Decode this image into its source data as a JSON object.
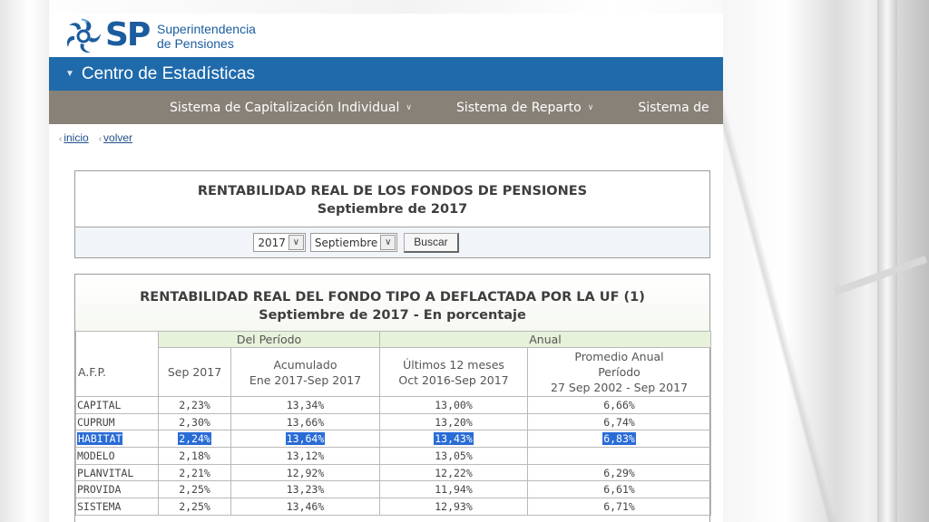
{
  "header": {
    "logo_abbrev": "SP",
    "logo_line1": "Superintendencia",
    "logo_line2": "de Pensiones",
    "section_title": "Centro de Estadísticas"
  },
  "nav": {
    "items": [
      {
        "label": "Sistema de Capitalización Individual",
        "icon": "chevron-down-icon"
      },
      {
        "label": "Sistema de Reparto",
        "icon": "chevron-down-icon"
      },
      {
        "label": "Sistema de",
        "icon": ""
      }
    ]
  },
  "breadcrumbs": {
    "home": "inicio",
    "back": "volver"
  },
  "filter_box": {
    "title": "RENTABILIDAD REAL DE LOS FONDOS DE PENSIONES",
    "subtitle": "Septiembre de 2017",
    "year_value": "2017",
    "month_value": "Septiembre",
    "search_label": "Buscar"
  },
  "results": {
    "title": "RENTABILIDAD REAL DEL FONDO TIPO A DEFLACTADA POR LA UF (1)",
    "subtitle": "Septiembre de 2017 - En porcentaje",
    "group_headers": {
      "period": "Del Período",
      "annual": "Anual"
    },
    "columns": {
      "afp": "A.F.P.",
      "month": "Sep 2017",
      "ytd_line1": "Acumulado",
      "ytd_line2": "Ene 2017-Sep 2017",
      "last12_line1": "Últimos 12 meses",
      "last12_line2": "Oct 2016-Sep 2017",
      "avg_line1": "Promedio Anual",
      "avg_line2": "Período",
      "avg_line3": "27 Sep 2002 - Sep 2017"
    },
    "rows": [
      {
        "afp": "CAPITAL",
        "month": "2,23%",
        "ytd": "13,34%",
        "last12": "13,00%",
        "avg": "6,66%"
      },
      {
        "afp": "CUPRUM",
        "month": "2,30%",
        "ytd": "13,66%",
        "last12": "13,20%",
        "avg": "6,74%"
      },
      {
        "afp": "HABITAT",
        "month": "2,24%",
        "ytd": "13,64%",
        "last12": "13,43%",
        "avg": "6,83%"
      },
      {
        "afp": "MODELO",
        "month": "2,18%",
        "ytd": "13,12%",
        "last12": "13,05%",
        "avg": ""
      },
      {
        "afp": "PLANVITAL",
        "month": "2,21%",
        "ytd": "12,92%",
        "last12": "12,22%",
        "avg": "6,29%"
      },
      {
        "afp": "PROVIDA",
        "month": "2,25%",
        "ytd": "13,23%",
        "last12": "11,94%",
        "avg": "6,61%"
      },
      {
        "afp": "SISTEMA",
        "month": "2,25%",
        "ytd": "13,46%",
        "last12": "12,93%",
        "avg": "6,71%"
      }
    ]
  },
  "colors": {
    "brand_blue": "#1f6aab",
    "nav_gray": "#888177",
    "header_green": "#e6f2da",
    "selection_blue": "#2a6cd6"
  }
}
